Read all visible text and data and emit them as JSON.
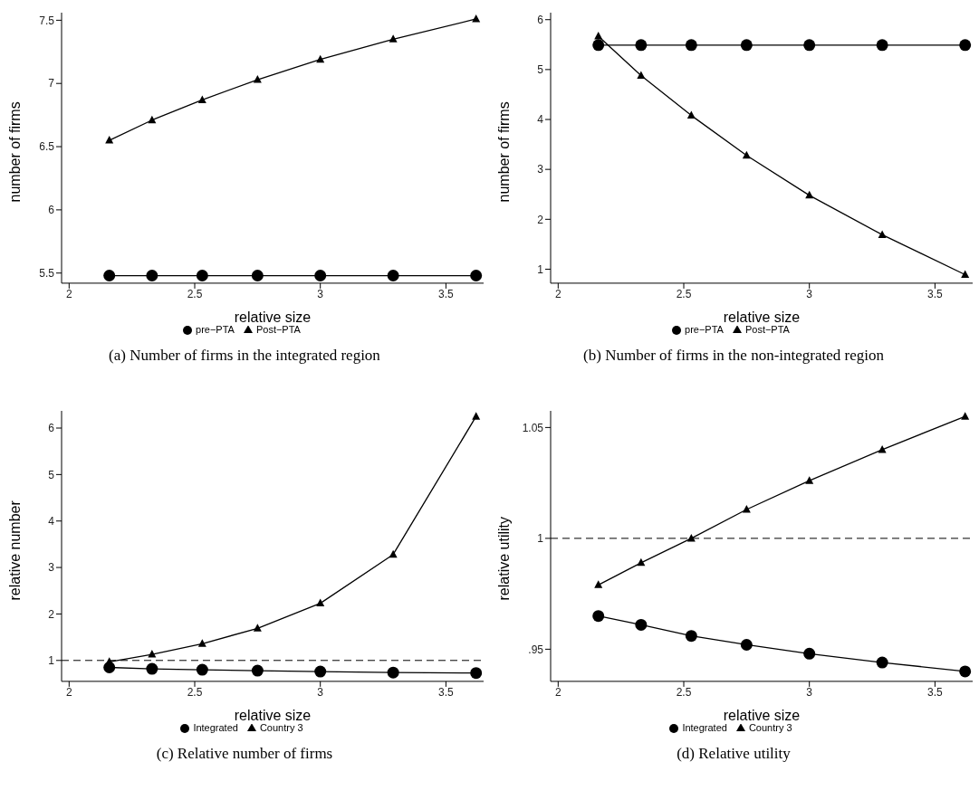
{
  "chart_data": [
    {
      "type": "line",
      "xlabel": "relative size",
      "ylabel": "number of firms",
      "x": [
        2.16,
        2.33,
        2.53,
        2.75,
        3,
        3.29,
        3.62
      ],
      "xlim": [
        1.97,
        3.65
      ],
      "xticks": [
        2,
        2.5,
        3,
        3.5
      ],
      "ylim": [
        5.42,
        7.56
      ],
      "yticks": [
        5.5,
        6,
        6.5,
        7,
        7.5
      ],
      "legend": "bottom",
      "grid": false,
      "annotations": [
        "(a)  Number of firms in the integrated region"
      ],
      "series": [
        {
          "name": "pre−PTA",
          "color": "#000000",
          "marker": "circle",
          "values": [
            5.48,
            5.48,
            5.48,
            5.48,
            5.48,
            5.48,
            5.48
          ]
        },
        {
          "name": "Post−PTA",
          "color": "#000000",
          "marker": "triangle",
          "values": [
            6.55,
            6.71,
            6.87,
            7.03,
            7.19,
            7.35,
            7.51
          ]
        }
      ]
    },
    {
      "type": "line",
      "xlabel": "relative size",
      "ylabel": "number of firms",
      "x": [
        2.16,
        2.33,
        2.53,
        2.75,
        3,
        3.29,
        3.62
      ],
      "xlim": [
        1.97,
        3.65
      ],
      "xticks": [
        2,
        2.5,
        3,
        3.5
      ],
      "ylim": [
        0.72,
        6.14
      ],
      "yticks": [
        1,
        2,
        3,
        4,
        5,
        6
      ],
      "legend": "bottom",
      "grid": false,
      "annotations": [
        "(b)  Number of firms in the non-integrated region"
      ],
      "series": [
        {
          "name": "pre−PTA",
          "color": "#000000",
          "marker": "circle",
          "values": [
            5.49,
            5.49,
            5.49,
            5.49,
            5.49,
            5.49,
            5.49
          ]
        },
        {
          "name": "Post−PTA",
          "color": "#000000",
          "marker": "triangle",
          "values": [
            5.67,
            4.88,
            4.08,
            3.28,
            2.48,
            1.69,
            0.89
          ]
        }
      ]
    },
    {
      "type": "line",
      "xlabel": "relative size",
      "ylabel": "relative number",
      "x": [
        2.16,
        2.33,
        2.53,
        2.75,
        3,
        3.29,
        3.62
      ],
      "xlim": [
        1.97,
        3.65
      ],
      "xticks": [
        2,
        2.5,
        3,
        3.5
      ],
      "ylim": [
        0.55,
        6.37
      ],
      "yticks": [
        1,
        2,
        3,
        4,
        5,
        6
      ],
      "legend": "bottom",
      "grid": false,
      "ref_lines": [
        {
          "axis": "y",
          "value": 1,
          "line_style": "dashed",
          "color": "#000000"
        }
      ],
      "annotations": [
        "(c)  Relative number of firms"
      ],
      "series": [
        {
          "name": "Integrated",
          "color": "#000000",
          "marker": "circle",
          "values": [
            0.85,
            0.82,
            0.8,
            0.78,
            0.76,
            0.74,
            0.73
          ]
        },
        {
          "name": "Country 3",
          "color": "#000000",
          "marker": "triangle",
          "values": [
            0.97,
            1.13,
            1.36,
            1.69,
            2.23,
            3.28,
            6.25
          ]
        }
      ]
    },
    {
      "type": "line",
      "xlabel": "relative size",
      "ylabel": "relative utility",
      "x": [
        2.16,
        2.33,
        2.53,
        2.75,
        3,
        3.29,
        3.62
      ],
      "xlim": [
        1.97,
        3.65
      ],
      "xticks": [
        2,
        2.5,
        3,
        3.5
      ],
      "ylim": [
        0.9355,
        1.0575
      ],
      "yticks": [
        {
          "value": 0.95,
          "label": ".95"
        },
        1,
        1.05
      ],
      "legend": "bottom",
      "grid": false,
      "ref_lines": [
        {
          "axis": "y",
          "value": 1,
          "line_style": "dashed",
          "color": "#000000"
        }
      ],
      "annotations": [
        "(d)  Relative utility"
      ],
      "series": [
        {
          "name": "Integrated",
          "color": "#000000",
          "marker": "circle",
          "values": [
            0.965,
            0.961,
            0.956,
            0.952,
            0.948,
            0.944,
            0.94
          ]
        },
        {
          "name": "Country 3",
          "color": "#000000",
          "marker": "triangle",
          "values": [
            0.979,
            0.989,
            1,
            1.013,
            1.026,
            1.04,
            1.055
          ]
        }
      ]
    }
  ]
}
